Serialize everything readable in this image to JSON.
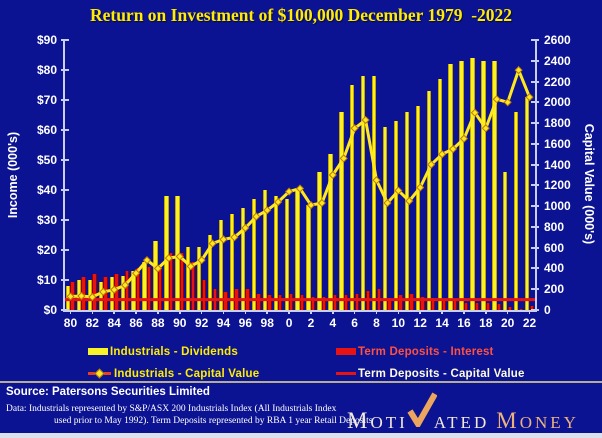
{
  "title": "Return on Investment of $100,000 December 1979  -2022",
  "source": "Source: Patersons Securities Limited",
  "footnote": {
    "line1": "Data: Industrials represented by S&P/ASX 200 Industrials Index (All Industrials Index",
    "line2": "used prior to May 1992). Term Deposits represented by RBA 1 year Retail Deposits"
  },
  "logo": {
    "pre": "M",
    "pre2": "OTI",
    "post": "ATED",
    "money_cap": "M",
    "money_rest": "ONEY",
    "check_color": "#eca55e",
    "money_color": "#edb27c",
    "letter_color": "#f2ead8"
  },
  "colors": {
    "background": "#0c1392",
    "title": "#ffec00",
    "axis": "#c9cff2",
    "axis_text": "#ffffff",
    "separator": "#b5ad92",
    "bottom_strip": "#dde1ee"
  },
  "legend": {
    "position": "bottom",
    "items": [
      {
        "label": "Industrials - Dividends",
        "swatch": "bar",
        "color": "#f7f327",
        "text_color": "#ffee00"
      },
      {
        "label": "Term Deposits - Interest",
        "swatch": "bar",
        "color": "#e81414",
        "text_color": "#ff5040"
      },
      {
        "label": "Industrials - Capital Value",
        "swatch": "line-diamond",
        "color": "#ffe81e",
        "text_color": "#ffee00"
      },
      {
        "label": "Term Deposits - Capital Value",
        "swatch": "line",
        "color": "#e81414",
        "text_color": "#fffbe2"
      }
    ]
  },
  "chart_data": {
    "type": "bar+line",
    "title": "Return on Investment of $100,000 December 1979 -2022",
    "ylabel_left": "Income (000's)",
    "ylabel_right": "Capital Value (000's)",
    "y_left_range": [
      0,
      90
    ],
    "y_left_ticks": [
      "$90",
      "$80",
      "$70",
      "$60",
      "$50",
      "$40",
      "$30",
      "$20",
      "$10",
      "$0"
    ],
    "y_right_range": [
      0,
      2600
    ],
    "y_right_ticks": [
      "2600",
      "2400",
      "2200",
      "2000",
      "1800",
      "1600",
      "1400",
      "1200",
      "1000",
      "800",
      "600",
      "400",
      "200",
      "0"
    ],
    "x_tick_labels": [
      "80",
      "82",
      "84",
      "86",
      "88",
      "90",
      "92",
      "94",
      "96",
      "98",
      "0",
      "2",
      "4",
      "6",
      "8",
      "10",
      "12",
      "14",
      "16",
      "18",
      "20",
      "22"
    ],
    "grid": false,
    "years": [
      1980,
      1981,
      1982,
      1983,
      1984,
      1985,
      1986,
      1987,
      1988,
      1989,
      1990,
      1991,
      1992,
      1993,
      1994,
      1995,
      1996,
      1997,
      1998,
      1999,
      2000,
      2001,
      2002,
      2003,
      2004,
      2005,
      2006,
      2007,
      2008,
      2009,
      2010,
      2011,
      2012,
      2013,
      2014,
      2015,
      2016,
      2017,
      2018,
      2019,
      2020,
      2021,
      2022
    ],
    "series": [
      {
        "name": "Industrials - Dividends",
        "type": "bar",
        "axis": "left",
        "color": "#f7f327",
        "edge": "#c8a400",
        "values": [
          8,
          10,
          10,
          9.5,
          11,
          11.5,
          13,
          16,
          23,
          38,
          38,
          21,
          21,
          25,
          30,
          32,
          34,
          37,
          40,
          38,
          37,
          40,
          35,
          46,
          52,
          66,
          75,
          78,
          78,
          61,
          63,
          66,
          68,
          73,
          77,
          82,
          83,
          84,
          83,
          83,
          46,
          66,
          71
        ]
      },
      {
        "name": "Term Deposits - Interest",
        "type": "bar",
        "axis": "left",
        "color": "#e81414",
        "edge": "#8f0000",
        "values": [
          9.5,
          11,
          12,
          11,
          12,
          13,
          14,
          14.5,
          15,
          19,
          19,
          16,
          10,
          7,
          6,
          7,
          7,
          5.5,
          5,
          5,
          5.5,
          5,
          4.5,
          4.5,
          5,
          5,
          5.5,
          6.5,
          7,
          4,
          5,
          5.5,
          4.5,
          4,
          3.5,
          3,
          2.5,
          2.5,
          2.5,
          2,
          1,
          0.5,
          1.5
        ]
      },
      {
        "name": "Industrials - Capital Value",
        "type": "line",
        "axis": "right",
        "color": "#ffe81e",
        "marker": "diamond",
        "marker_edge": "#b97b10",
        "values": [
          130,
          135,
          125,
          175,
          195,
          240,
          355,
          480,
          400,
          500,
          515,
          420,
          480,
          640,
          680,
          700,
          790,
          900,
          960,
          1040,
          1140,
          1170,
          1010,
          1030,
          1300,
          1460,
          1750,
          1830,
          1250,
          1030,
          1150,
          1050,
          1180,
          1400,
          1500,
          1550,
          1650,
          1900,
          1750,
          2030,
          2000,
          2310,
          2050
        ]
      },
      {
        "name": "Term Deposits - Capital Value",
        "type": "line",
        "axis": "right",
        "color": "#e81414",
        "values": [
          100,
          100,
          100,
          100,
          100,
          100,
          100,
          100,
          100,
          100,
          100,
          100,
          100,
          100,
          100,
          100,
          100,
          100,
          100,
          100,
          100,
          100,
          100,
          100,
          100,
          100,
          100,
          100,
          100,
          100,
          100,
          100,
          100,
          100,
          100,
          100,
          100,
          100,
          100,
          100,
          100,
          100,
          100
        ]
      }
    ]
  }
}
